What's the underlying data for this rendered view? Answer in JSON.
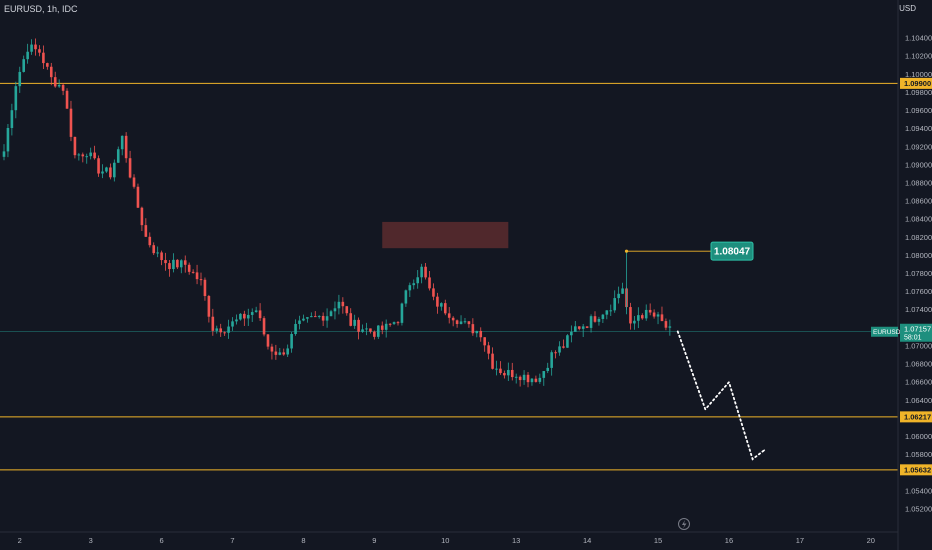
{
  "header": {
    "symbol": "EURUSD, 1h, IDC",
    "currency": "USD"
  },
  "colors": {
    "background": "#131722",
    "bull": "#26a69a",
    "bear": "#ef5350",
    "level": "#f0b429",
    "zone": "#5c2b2e",
    "price_line": "#26a69a",
    "axis_text": "#b2b5be",
    "dotted_path": "#ffffff"
  },
  "chart_data": {
    "type": "candlestick",
    "title": "",
    "ylim": [
      1.051,
      1.106
    ],
    "y_ticks": [
      "1.10400",
      "1.10200",
      "1.10000",
      "1.09800",
      "1.09600",
      "1.09400",
      "1.09200",
      "1.09000",
      "1.08800",
      "1.08600",
      "1.08400",
      "1.08200",
      "1.08000",
      "1.07800",
      "1.07600",
      "1.07400",
      "1.07200",
      "1.07000",
      "1.06800",
      "1.06600",
      "1.06400",
      "1.06200",
      "1.06000",
      "1.05800",
      "1.05600",
      "1.05400",
      "1.05200"
    ],
    "x_ticks": [
      {
        "label": "2",
        "bar": 4
      },
      {
        "label": "3",
        "bar": 22
      },
      {
        "label": "6",
        "bar": 40
      },
      {
        "label": "7",
        "bar": 58
      },
      {
        "label": "8",
        "bar": 76
      },
      {
        "label": "9",
        "bar": 94
      },
      {
        "label": "10",
        "bar": 112
      },
      {
        "label": "13",
        "bar": 130
      },
      {
        "label": "14",
        "bar": 148
      },
      {
        "label": "15",
        "bar": 166
      },
      {
        "label": "16",
        "bar": 184
      },
      {
        "label": "17",
        "bar": 202
      },
      {
        "label": "20",
        "bar": 220
      }
    ],
    "horizontal_levels": [
      {
        "name": "resistance",
        "value": 1.099,
        "label": "1.09900"
      },
      {
        "name": "support-1",
        "value": 1.06217,
        "label": "1.06217"
      },
      {
        "name": "support-2",
        "value": 1.05632,
        "label": "1.05632"
      }
    ],
    "current_price": {
      "value": 1.07157,
      "label": "EURUSD",
      "price": "1.07157",
      "countdown": "58:01"
    },
    "high_marker": {
      "value": 1.08047,
      "label": "1.08047",
      "bar": 158
    },
    "supply_zone": {
      "from_bar": 96,
      "to_bar": 128,
      "low": 1.0808,
      "high": 1.0837
    },
    "projection_path": [
      {
        "bar": 171,
        "value": 1.0716
      },
      {
        "bar": 178,
        "value": 1.063
      },
      {
        "bar": 184,
        "value": 1.066
      },
      {
        "bar": 190,
        "value": 1.0575
      },
      {
        "bar": 193,
        "value": 1.0585
      }
    ],
    "ohlc_anchors": [
      {
        "bar": 0,
        "close": 1.0915
      },
      {
        "bar": 3,
        "close": 1.099
      },
      {
        "bar": 6,
        "close": 1.103
      },
      {
        "bar": 9,
        "close": 1.1025
      },
      {
        "bar": 12,
        "close": 1.0995
      },
      {
        "bar": 15,
        "close": 1.0985
      },
      {
        "bar": 18,
        "close": 1.091
      },
      {
        "bar": 21,
        "close": 1.0915
      },
      {
        "bar": 24,
        "close": 1.0895
      },
      {
        "bar": 27,
        "close": 1.089
      },
      {
        "bar": 30,
        "close": 1.093
      },
      {
        "bar": 33,
        "close": 1.087
      },
      {
        "bar": 36,
        "close": 1.082
      },
      {
        "bar": 39,
        "close": 1.08
      },
      {
        "bar": 42,
        "close": 1.079
      },
      {
        "bar": 46,
        "close": 1.079
      },
      {
        "bar": 50,
        "close": 1.077
      },
      {
        "bar": 53,
        "close": 1.072
      },
      {
        "bar": 56,
        "close": 1.072
      },
      {
        "bar": 60,
        "close": 1.073
      },
      {
        "bar": 64,
        "close": 1.074
      },
      {
        "bar": 67,
        "close": 1.07
      },
      {
        "bar": 70,
        "close": 1.069
      },
      {
        "bar": 72,
        "close": 1.07
      },
      {
        "bar": 74,
        "close": 1.072
      },
      {
        "bar": 78,
        "close": 1.073
      },
      {
        "bar": 82,
        "close": 1.0735
      },
      {
        "bar": 85,
        "close": 1.075
      },
      {
        "bar": 88,
        "close": 1.0725
      },
      {
        "bar": 91,
        "close": 1.072
      },
      {
        "bar": 94,
        "close": 1.0715
      },
      {
        "bar": 97,
        "close": 1.072
      },
      {
        "bar": 100,
        "close": 1.073
      },
      {
        "bar": 103,
        "close": 1.077
      },
      {
        "bar": 106,
        "close": 1.0785
      },
      {
        "bar": 109,
        "close": 1.075
      },
      {
        "bar": 112,
        "close": 1.074
      },
      {
        "bar": 115,
        "close": 1.073
      },
      {
        "bar": 118,
        "close": 1.072
      },
      {
        "bar": 121,
        "close": 1.0715
      },
      {
        "bar": 124,
        "close": 1.068
      },
      {
        "bar": 127,
        "close": 1.067
      },
      {
        "bar": 130,
        "close": 1.067
      },
      {
        "bar": 133,
        "close": 1.0665
      },
      {
        "bar": 136,
        "close": 1.0665
      },
      {
        "bar": 139,
        "close": 1.069
      },
      {
        "bar": 142,
        "close": 1.07
      },
      {
        "bar": 145,
        "close": 1.072
      },
      {
        "bar": 148,
        "close": 1.0725
      },
      {
        "bar": 151,
        "close": 1.0735
      },
      {
        "bar": 154,
        "close": 1.0745
      },
      {
        "bar": 157,
        "close": 1.0765
      },
      {
        "bar": 159,
        "close": 1.072
      },
      {
        "bar": 161,
        "close": 1.0735
      },
      {
        "bar": 164,
        "close": 1.0735
      },
      {
        "bar": 166,
        "close": 1.073
      },
      {
        "bar": 169,
        "close": 1.0716
      }
    ]
  }
}
